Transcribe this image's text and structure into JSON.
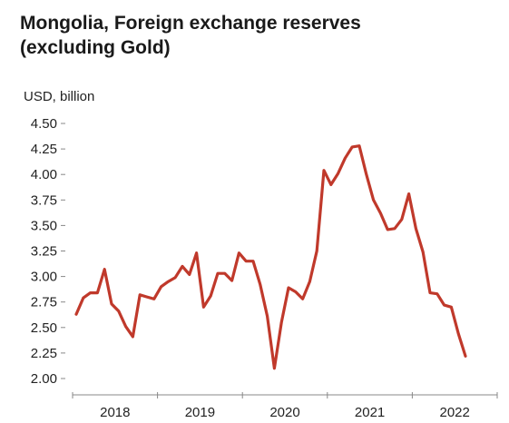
{
  "chart_data": {
    "type": "line",
    "title": "Mongolia, Foreign exchange reserves (excluding Gold)",
    "title_lines": [
      "Mongolia, Foreign exchange reserves",
      "(excluding Gold)"
    ],
    "ylabel": "USD, billion",
    "xlabel": "",
    "ylim": [
      2.0,
      4.5
    ],
    "yticks": [
      "4.50",
      "4.25",
      "4.00",
      "3.75",
      "3.50",
      "3.25",
      "3.00",
      "2.75",
      "2.50",
      "2.25",
      "2.00"
    ],
    "x_year_labels": [
      "2018",
      "2019",
      "2020",
      "2021",
      "2022"
    ],
    "grid": false,
    "line_color": "#c0392b",
    "series": [
      {
        "x_start": "2018-01",
        "frequency": "monthly",
        "values": [
          2.63,
          2.79,
          2.84,
          2.84,
          3.07,
          2.73,
          2.66,
          2.51,
          2.41,
          2.82,
          2.8,
          2.78,
          2.9,
          2.95,
          2.99,
          3.1,
          3.02,
          3.23,
          2.7,
          2.81,
          3.03,
          3.03,
          2.96,
          3.23,
          3.15,
          3.15,
          2.92,
          2.61,
          2.1,
          2.55,
          2.89,
          2.85,
          2.78,
          2.95,
          3.25,
          4.04,
          3.9,
          4.01,
          4.16,
          4.27,
          4.28,
          4.0,
          3.75,
          3.62,
          3.46,
          3.47,
          3.56,
          3.81,
          3.47,
          3.24,
          2.84,
          2.83,
          2.72,
          2.7,
          2.44,
          2.22
        ]
      }
    ]
  }
}
